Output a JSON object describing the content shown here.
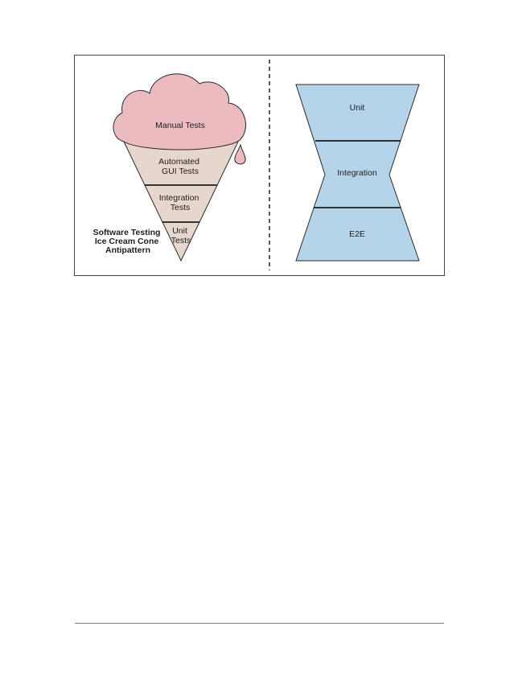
{
  "left_diagram": {
    "cream_label": "Manual Tests",
    "layer1_lines": [
      "Automated",
      "GUI Tests"
    ],
    "layer2_lines": [
      "Integration",
      "Tests"
    ],
    "layer3_lines": [
      "Unit",
      "Tests"
    ],
    "caption_lines": [
      "Software Testing",
      "Ice Cream Cone",
      "Antipattern"
    ]
  },
  "right_diagram": {
    "top_label": "Unit",
    "middle_label": "Integration",
    "bottom_label": "E2E"
  },
  "colors": {
    "cream": "#ebbbc0",
    "cone": "#e7d6cd",
    "hourglass": "#b5d4e9",
    "stroke": "#2a2a2a"
  }
}
